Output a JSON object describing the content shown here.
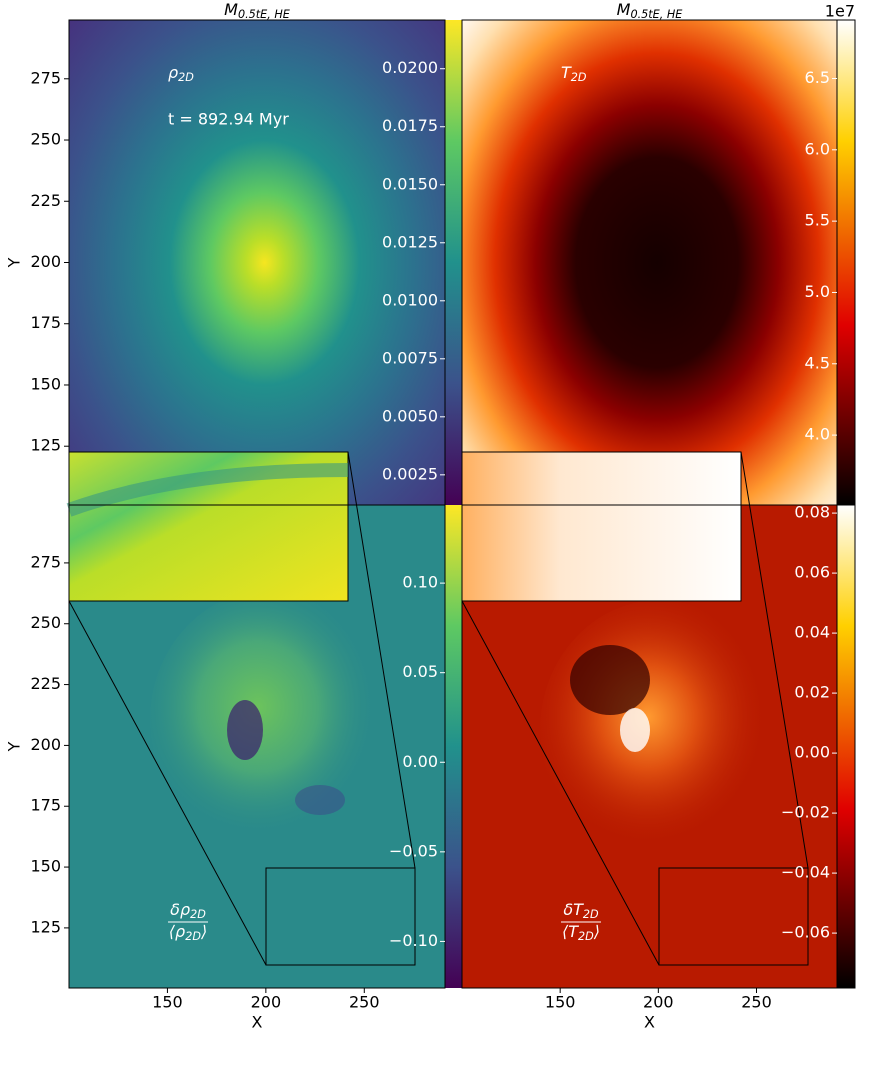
{
  "chart_data": [
    {
      "type": "heatmap",
      "title": "M",
      "title_subscript": "0.5tE, HE",
      "ylabel": "Y",
      "ylim": [
        101,
        299
      ],
      "yticks": [
        125,
        150,
        175,
        200,
        225,
        250,
        275
      ],
      "colorbar": {
        "lim": [
          0.0012,
          0.0221
        ],
        "ticks": [
          {
            "value": 0.0025,
            "label": "0.0025"
          },
          {
            "value": 0.005,
            "label": "0.0050"
          },
          {
            "value": 0.0075,
            "label": "0.0075"
          },
          {
            "value": 0.01,
            "label": "0.0100"
          },
          {
            "value": 0.0125,
            "label": "0.0125"
          },
          {
            "value": 0.015,
            "label": "0.0150"
          },
          {
            "value": 0.0175,
            "label": "0.0175"
          },
          {
            "value": 0.02,
            "label": "0.0200"
          }
        ]
      },
      "annotations": [
        {
          "text": "ρ",
          "sub": "2D"
        },
        {
          "text": "t = 892.94 Myr"
        }
      ]
    },
    {
      "type": "heatmap",
      "title": "M",
      "title_subscript": "0.5tE, HE",
      "colorbar": {
        "lim": [
          3.51,
          6.91
        ],
        "ticks": [
          {
            "value": 4,
            "label": "4.0"
          },
          4.5,
          {
            "value": 5,
            "label": "5.0"
          },
          5.5,
          {
            "value": 6,
            "label": "6.0"
          },
          6.5
        ],
        "offset_label": "1e7"
      },
      "annotations": [
        {
          "text": "T",
          "sub": "2D"
        }
      ]
    },
    {
      "type": "heatmap",
      "xlabel": "X",
      "ylabel": "Y",
      "xlim": [
        100,
        291
      ],
      "xticks": [
        150,
        200,
        250
      ],
      "ylim": [
        100.3,
        298.8
      ],
      "yticks": [
        125,
        150,
        175,
        200,
        225,
        250,
        275
      ],
      "colorbar": {
        "lim": [
          -0.126,
          0.1436
        ],
        "ticks": [
          {
            "value": -0.1,
            "label": "−0.10"
          },
          {
            "value": -0.05,
            "label": "−0.05"
          },
          {
            "value": 0,
            "label": "0.00"
          },
          0.05,
          {
            "value": 0.1,
            "label": "0.10"
          }
        ]
      },
      "annotations": [
        {
          "numerator": "δρ",
          "numerator_sub": "2D",
          "denominator": "⟨ρ",
          "denominator_sub": "2D",
          "denominator_after": "⟩"
        }
      ]
    },
    {
      "type": "heatmap",
      "xlabel": "X",
      "xlim": [
        100,
        291
      ],
      "xticks": [
        150,
        200,
        250
      ],
      "colorbar": {
        "lim": [
          -0.0783,
          0.0827
        ],
        "ticks": [
          {
            "value": -0.06,
            "label": "−0.06"
          },
          {
            "value": -0.04,
            "label": "−0.04"
          },
          {
            "value": -0.02,
            "label": "−0.02"
          },
          {
            "value": 0,
            "label": "0.00"
          },
          0.02,
          0.04,
          0.06,
          0.08
        ]
      },
      "annotations": [
        {
          "numerator": "δT",
          "numerator_sub": "2D",
          "denominator": "⟨T",
          "denominator_sub": "2D",
          "denominator_after": "⟩"
        }
      ]
    }
  ]
}
